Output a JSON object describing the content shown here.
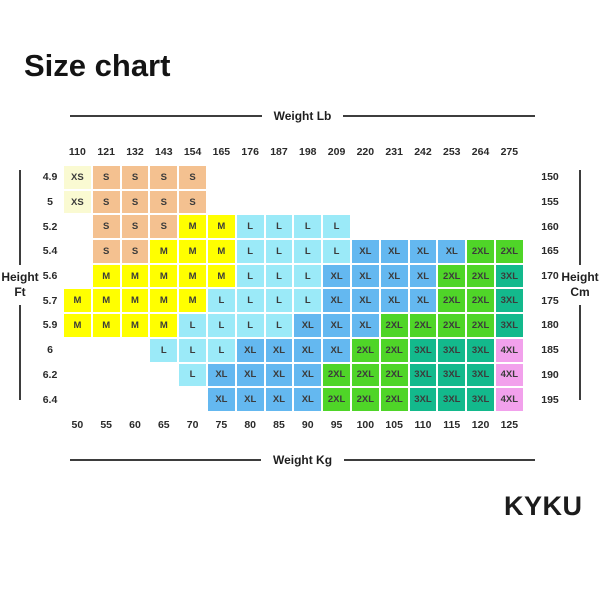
{
  "title": "Size chart",
  "brand": "KYKU",
  "axes": {
    "top_label": "Weight Lb",
    "bottom_label": "Weight Kg",
    "left_label_line1": "Height",
    "left_label_line2": "Ft",
    "right_label_line1": "Height",
    "right_label_line2": "Cm"
  },
  "chart_data": {
    "type": "heatmap",
    "title": "Size chart",
    "x_axis_top": {
      "label": "Weight Lb",
      "ticks": [
        110,
        121,
        132,
        143,
        154,
        165,
        176,
        187,
        198,
        209,
        220,
        231,
        242,
        253,
        264,
        275
      ]
    },
    "x_axis_bottom": {
      "label": "Weight Kg",
      "ticks": [
        50,
        55,
        60,
        65,
        70,
        75,
        80,
        85,
        90,
        95,
        100,
        105,
        110,
        115,
        120,
        125
      ]
    },
    "y_axis_left": {
      "label": "Height Ft",
      "ticks": [
        "4.9",
        "5",
        "5.2",
        "5.4",
        "5.6",
        "5.7",
        "5.9",
        "6",
        "6.2",
        "6.4"
      ]
    },
    "y_axis_right": {
      "label": "Height Cm",
      "ticks": [
        150,
        155,
        160,
        165,
        170,
        175,
        180,
        185,
        190,
        195
      ]
    },
    "weight_lb": [
      110,
      121,
      132,
      143,
      154,
      165,
      176,
      187,
      198,
      209,
      220,
      231,
      242,
      253,
      264,
      275
    ],
    "weight_kg": [
      50,
      55,
      60,
      65,
      70,
      75,
      80,
      85,
      90,
      95,
      100,
      105,
      110,
      115,
      120,
      125
    ],
    "height_ft": [
      "4.9",
      "5",
      "5.2",
      "5.4",
      "5.6",
      "5.7",
      "5.9",
      "6",
      "6.2",
      "6.4"
    ],
    "height_cm": [
      150,
      155,
      160,
      165,
      170,
      175,
      180,
      185,
      190,
      195
    ],
    "rows": [
      [
        "XS",
        "S",
        "S",
        "S",
        "S",
        "",
        "",
        "",
        "",
        "",
        "",
        "",
        "",
        "",
        "",
        ""
      ],
      [
        "XS",
        "S",
        "S",
        "S",
        "S",
        "",
        "",
        "",
        "",
        "",
        "",
        "",
        "",
        "",
        "",
        ""
      ],
      [
        "",
        "S",
        "S",
        "S",
        "M",
        "M",
        "L",
        "L",
        "L",
        "L",
        "",
        "",
        "",
        "",
        "",
        ""
      ],
      [
        "",
        "S",
        "S",
        "M",
        "M",
        "M",
        "L",
        "L",
        "L",
        "L",
        "XL",
        "XL",
        "XL",
        "XL",
        "2XL",
        "2XL"
      ],
      [
        "",
        "M",
        "M",
        "M",
        "M",
        "M",
        "L",
        "L",
        "L",
        "XL",
        "XL",
        "XL",
        "XL",
        "2XL",
        "2XL",
        "3XL"
      ],
      [
        "M",
        "M",
        "M",
        "M",
        "M",
        "L",
        "L",
        "L",
        "L",
        "XL",
        "XL",
        "XL",
        "XL",
        "2XL",
        "2XL",
        "3XL"
      ],
      [
        "M",
        "M",
        "M",
        "M",
        "L",
        "L",
        "L",
        "L",
        "XL",
        "XL",
        "XL",
        "2XL",
        "2XL",
        "2XL",
        "2XL",
        "3XL"
      ],
      [
        "",
        "",
        "",
        "L",
        "L",
        "L",
        "XL",
        "XL",
        "XL",
        "XL",
        "2XL",
        "2XL",
        "3XL",
        "3XL",
        "3XL",
        "4XL"
      ],
      [
        "",
        "",
        "",
        "",
        "L",
        "XL",
        "XL",
        "XL",
        "XL",
        "2XL",
        "2XL",
        "2XL",
        "3XL",
        "3XL",
        "3XL",
        "4XL"
      ],
      [
        "",
        "",
        "",
        "",
        "",
        "XL",
        "XL",
        "XL",
        "XL",
        "2XL",
        "2XL",
        "2XL",
        "3XL",
        "3XL",
        "3XL",
        "4XL"
      ]
    ],
    "size_colors": {
      "XS": "#FAFAD2",
      "S": "#F4C190",
      "M": "#FFFF00",
      "L": "#9BEAF8",
      "XL": "#64B8F0",
      "2XL": "#4FD528",
      "3XL": "#13B98C",
      "4XL": "#F2A1EC"
    }
  }
}
